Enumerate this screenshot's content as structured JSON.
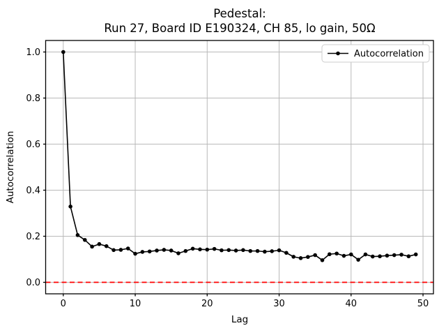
{
  "figure": {
    "background": "#ffffff"
  },
  "chart_data": {
    "type": "line",
    "title": "Pedestal:\nRun 27, Board ID E190324, CH 85, lo gain, 50Ω",
    "title_line1": "Pedestal:",
    "title_line2": "Run 27, Board ID E190324, CH 85, lo gain, 50Ω",
    "xlabel": "Lag",
    "ylabel": "Autocorrelation",
    "legend": {
      "label": "Autocorrelation",
      "position": "upper right",
      "marker": "point"
    },
    "grid": true,
    "x_ticks": [
      0,
      10,
      20,
      30,
      40,
      50
    ],
    "y_ticks": [
      0.0,
      0.2,
      0.4,
      0.6,
      0.8,
      1.0
    ],
    "xlim": [
      -2.45,
      51.45
    ],
    "ylim": [
      -0.05,
      1.05
    ],
    "x": [
      0,
      1,
      2,
      3,
      4,
      5,
      6,
      7,
      8,
      9,
      10,
      11,
      12,
      13,
      14,
      15,
      16,
      17,
      18,
      19,
      20,
      21,
      22,
      23,
      24,
      25,
      26,
      27,
      28,
      29,
      30,
      31,
      32,
      33,
      34,
      35,
      36,
      37,
      38,
      39,
      40,
      41,
      42,
      43,
      44,
      45,
      46,
      47,
      48,
      49
    ],
    "series": [
      {
        "name": "Autocorrelation",
        "color": "#000000",
        "marker": "circle",
        "values": [
          1.0,
          0.329,
          0.205,
          0.184,
          0.155,
          0.166,
          0.157,
          0.14,
          0.141,
          0.147,
          0.124,
          0.132,
          0.134,
          0.138,
          0.141,
          0.138,
          0.126,
          0.136,
          0.146,
          0.143,
          0.142,
          0.145,
          0.139,
          0.14,
          0.138,
          0.14,
          0.136,
          0.136,
          0.133,
          0.135,
          0.139,
          0.128,
          0.111,
          0.105,
          0.11,
          0.118,
          0.096,
          0.122,
          0.125,
          0.115,
          0.121,
          0.098,
          0.121,
          0.112,
          0.113,
          0.116,
          0.118,
          0.12,
          0.113,
          0.121
        ]
      }
    ],
    "zero_line": {
      "y": 0,
      "color": "#ff0000",
      "style": "dashed"
    },
    "colors": {
      "line": "#000000",
      "zero_line": "#ff0000",
      "grid": "#b9b9b9",
      "spine": "#000000",
      "text": "#000000",
      "background": "#ffffff",
      "legend_border": "#cccccc"
    }
  }
}
